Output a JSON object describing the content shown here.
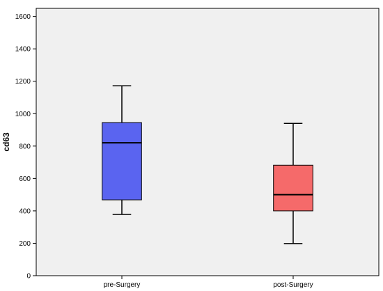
{
  "chart_data": {
    "type": "boxplot",
    "title": "",
    "xlabel": "",
    "ylabel": "cd63",
    "ylim": [
      0,
      1650
    ],
    "yticks": [
      0,
      200,
      400,
      600,
      800,
      1000,
      1200,
      1400,
      1600
    ],
    "ytick_labels": [
      "0",
      "200",
      "400",
      "600",
      "800",
      "1000",
      "1200",
      "1400",
      "1600"
    ],
    "grid": false,
    "legend": "none",
    "plot_background": "#f0f0f0",
    "categories": [
      "pre-Surgery",
      "post-Surgery"
    ],
    "boxes": [
      {
        "category": "pre-Surgery",
        "min": 378,
        "q1": 468,
        "median": 820,
        "q3": 945,
        "max": 1172,
        "color": "#5a64f0"
      },
      {
        "category": "post-Surgery",
        "min": 198,
        "q1": 400,
        "median": 500,
        "q3": 682,
        "max": 940,
        "color": "#f56a6a"
      }
    ]
  }
}
